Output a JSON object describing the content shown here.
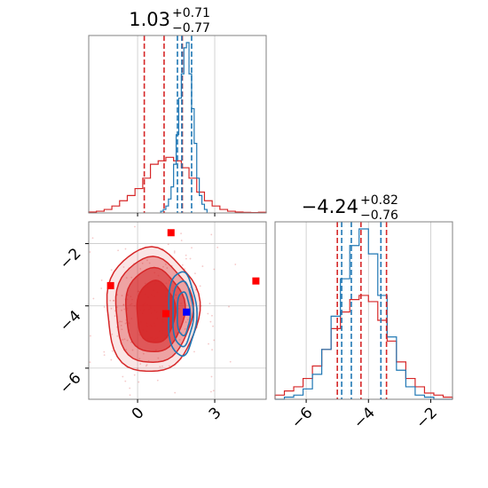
{
  "colors": {
    "red": "#d62728",
    "blue": "#1f77b4",
    "marker_blue": "#0000ff",
    "marker_red": "#ff0000"
  },
  "chart_data": {
    "type": "corner",
    "parameters": [
      {
        "id": "p0",
        "title": {
          "median": "1.03",
          "plus": "+0.71",
          "minus": "−0.77"
        },
        "range": [
          -1.9,
          5.0
        ],
        "ticks": [
          0,
          3
        ],
        "tick_labels": [
          "0",
          "3"
        ],
        "quantiles_red": [
          0.26,
          1.03,
          1.74
        ],
        "quantiles_blue": [
          1.55,
          1.72,
          2.1
        ]
      },
      {
        "id": "p1",
        "title": {
          "median": "−4.24",
          "plus": "+0.82",
          "minus": "−0.76"
        },
        "range": [
          -7.0,
          -1.3
        ],
        "ticks": [
          -6,
          -4,
          -2
        ],
        "tick_labels": [
          "−6",
          "−4",
          "−2"
        ],
        "quantiles_red": [
          -5.0,
          -4.24,
          -3.42
        ],
        "quantiles_blue": [
          -4.86,
          -4.55,
          -3.6
        ]
      }
    ],
    "joint_yticks": [
      -2,
      -4,
      -6
    ],
    "joint_ytick_labels": [
      "−2",
      "−4",
      "−6"
    ],
    "hist_p0_red": {
      "bins_x": [
        -1.9,
        -1.6,
        -1.3,
        -1.0,
        -0.7,
        -0.4,
        -0.1,
        0.2,
        0.5,
        0.8,
        1.1,
        1.4,
        1.7,
        2.0,
        2.3,
        2.6,
        2.9,
        3.2,
        3.5,
        3.8,
        4.1,
        4.4,
        4.7,
        5.0
      ],
      "counts": [
        0.005,
        0.01,
        0.02,
        0.04,
        0.07,
        0.1,
        0.14,
        0.2,
        0.28,
        0.3,
        0.32,
        0.3,
        0.26,
        0.2,
        0.12,
        0.07,
        0.04,
        0.02,
        0.01,
        0.005,
        0.003,
        0.002,
        0.004
      ]
    },
    "hist_p0_blue": {
      "bins_x": [
        0.9,
        1.0,
        1.1,
        1.2,
        1.3,
        1.4,
        1.5,
        1.6,
        1.7,
        1.8,
        1.9,
        2.0,
        2.1,
        2.2,
        2.3,
        2.4,
        2.5,
        2.6,
        2.7
      ],
      "counts": [
        0.01,
        0.02,
        0.04,
        0.08,
        0.15,
        0.28,
        0.45,
        0.66,
        0.8,
        0.95,
        0.98,
        0.8,
        0.6,
        0.4,
        0.2,
        0.1,
        0.05,
        0.02
      ]
    },
    "hist_p1_red": {
      "bins_x": [
        -7.0,
        -6.7,
        -6.4,
        -6.1,
        -5.8,
        -5.5,
        -5.2,
        -4.9,
        -4.6,
        -4.3,
        -4.0,
        -3.7,
        -3.4,
        -3.1,
        -2.8,
        -2.5,
        -2.2,
        -1.9,
        -1.6,
        -1.3
      ],
      "counts": [
        0.02,
        0.04,
        0.06,
        0.1,
        0.16,
        0.24,
        0.34,
        0.42,
        0.48,
        0.5,
        0.47,
        0.38,
        0.28,
        0.18,
        0.1,
        0.06,
        0.03,
        0.02,
        0.01
      ]
    },
    "hist_p1_blue": {
      "bins_x": [
        -7.0,
        -6.7,
        -6.4,
        -6.1,
        -5.8,
        -5.5,
        -5.2,
        -4.9,
        -4.6,
        -4.3,
        -4.0,
        -3.7,
        -3.4,
        -3.1,
        -2.8,
        -2.5,
        -2.2,
        -1.9,
        -1.6,
        -1.3
      ],
      "counts": [
        0.0,
        0.01,
        0.02,
        0.05,
        0.12,
        0.24,
        0.4,
        0.58,
        0.74,
        0.82,
        0.7,
        0.5,
        0.3,
        0.14,
        0.06,
        0.02,
        0.01,
        0.0,
        0.0
      ]
    },
    "joint_red_contours": [
      {
        "cx": 0.55,
        "cy": -4.15,
        "rx": 1.8,
        "ry": 2.0,
        "alpha": 0.12
      },
      {
        "cx": 0.6,
        "cy": -4.15,
        "rx": 1.5,
        "ry": 1.7,
        "alpha": 0.35
      },
      {
        "cx": 0.65,
        "cy": -4.15,
        "rx": 1.15,
        "ry": 1.35,
        "alpha": 0.6
      },
      {
        "cx": 0.7,
        "cy": -4.2,
        "rx": 0.75,
        "ry": 1.0,
        "alpha": 0.85
      }
    ],
    "joint_blue_contours": [
      {
        "cx": 1.72,
        "cy": -4.25,
        "rx": 0.55,
        "ry": 1.35
      },
      {
        "cx": 1.75,
        "cy": -4.25,
        "rx": 0.4,
        "ry": 1.05
      },
      {
        "cx": 1.78,
        "cy": -4.25,
        "rx": 0.25,
        "ry": 0.7
      }
    ],
    "joint_red_markers": [
      {
        "x": 1.3,
        "y": -1.65
      },
      {
        "x": -1.05,
        "y": -3.35
      },
      {
        "x": 4.6,
        "y": -3.2
      },
      {
        "x": 1.1,
        "y": -4.25
      }
    ],
    "joint_blue_marker": {
      "x": 1.9,
      "y": -4.2
    }
  }
}
